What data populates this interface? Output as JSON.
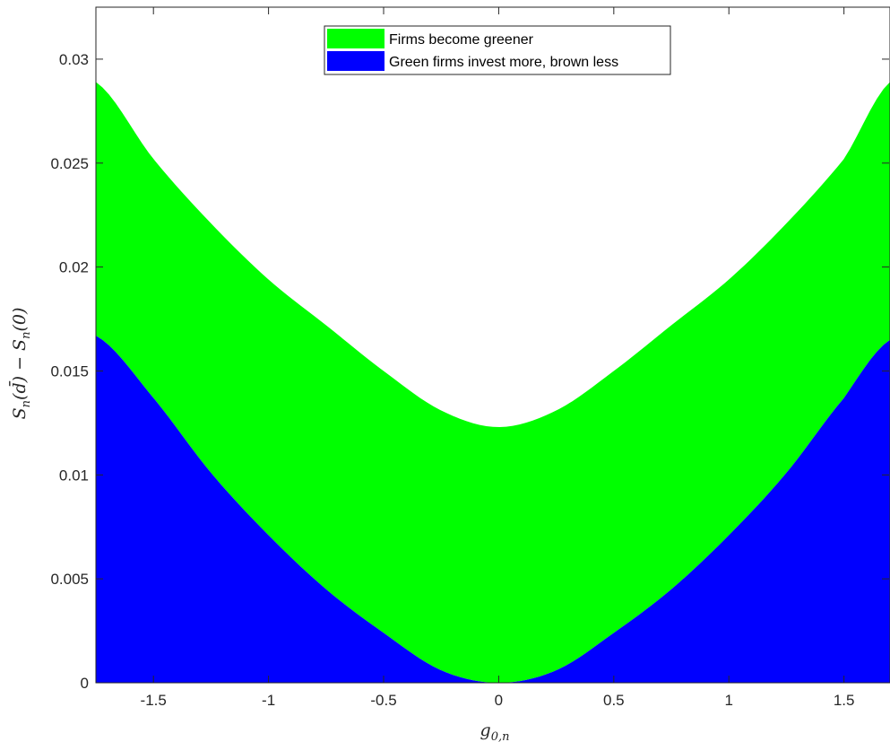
{
  "chart_data": {
    "type": "area",
    "xlabel": "g_{0,n}",
    "ylabel": "S_n(d̄) − S_n(0)",
    "xlim": [
      -1.75,
      1.7
    ],
    "ylim": [
      0,
      0.0325
    ],
    "xticks": [
      -1.5,
      -1,
      -0.5,
      0,
      0.5,
      1,
      1.5
    ],
    "xtick_labels": [
      "-1.5",
      "-1",
      "-0.5",
      "0",
      "0.5",
      "1",
      "1.5"
    ],
    "yticks": [
      0,
      0.005,
      0.01,
      0.015,
      0.02,
      0.025,
      0.03
    ],
    "ytick_labels": [
      "0",
      "0.005",
      "0.01",
      "0.015",
      "0.02",
      "0.025",
      "0.03"
    ],
    "grid": false,
    "legend_position": "top-center",
    "series": [
      {
        "name": "Firms become greener",
        "color": "#00ff00",
        "x": [
          -1.75,
          -1.5,
          -1.25,
          -1.0,
          -0.75,
          -0.5,
          -0.25,
          0.0,
          0.25,
          0.5,
          0.75,
          1.0,
          1.25,
          1.5,
          1.7
        ],
        "upper": [
          0.0289,
          0.0252,
          0.0221,
          0.0194,
          0.0172,
          0.015,
          0.0131,
          0.0123,
          0.0131,
          0.015,
          0.0172,
          0.0194,
          0.0221,
          0.0252,
          0.0289
        ],
        "lower": [
          0.0167,
          0.0137,
          0.0101,
          0.0071,
          0.0045,
          0.0024,
          0.0006,
          0.0,
          0.0006,
          0.0024,
          0.0045,
          0.0071,
          0.0101,
          0.0137,
          0.0165
        ]
      },
      {
        "name": "Green firms invest more, brown less",
        "color": "#0000ff",
        "x": [
          -1.75,
          -1.5,
          -1.25,
          -1.0,
          -0.75,
          -0.5,
          -0.25,
          0.0,
          0.25,
          0.5,
          0.75,
          1.0,
          1.25,
          1.5,
          1.7
        ],
        "upper": [
          0.0167,
          0.0137,
          0.0101,
          0.0071,
          0.0045,
          0.0024,
          0.0006,
          0.0,
          0.0006,
          0.0024,
          0.0045,
          0.0071,
          0.0101,
          0.0137,
          0.0165
        ],
        "lower": [
          0,
          0,
          0,
          0,
          0,
          0,
          0,
          0,
          0,
          0,
          0,
          0,
          0,
          0,
          0
        ]
      }
    ]
  }
}
